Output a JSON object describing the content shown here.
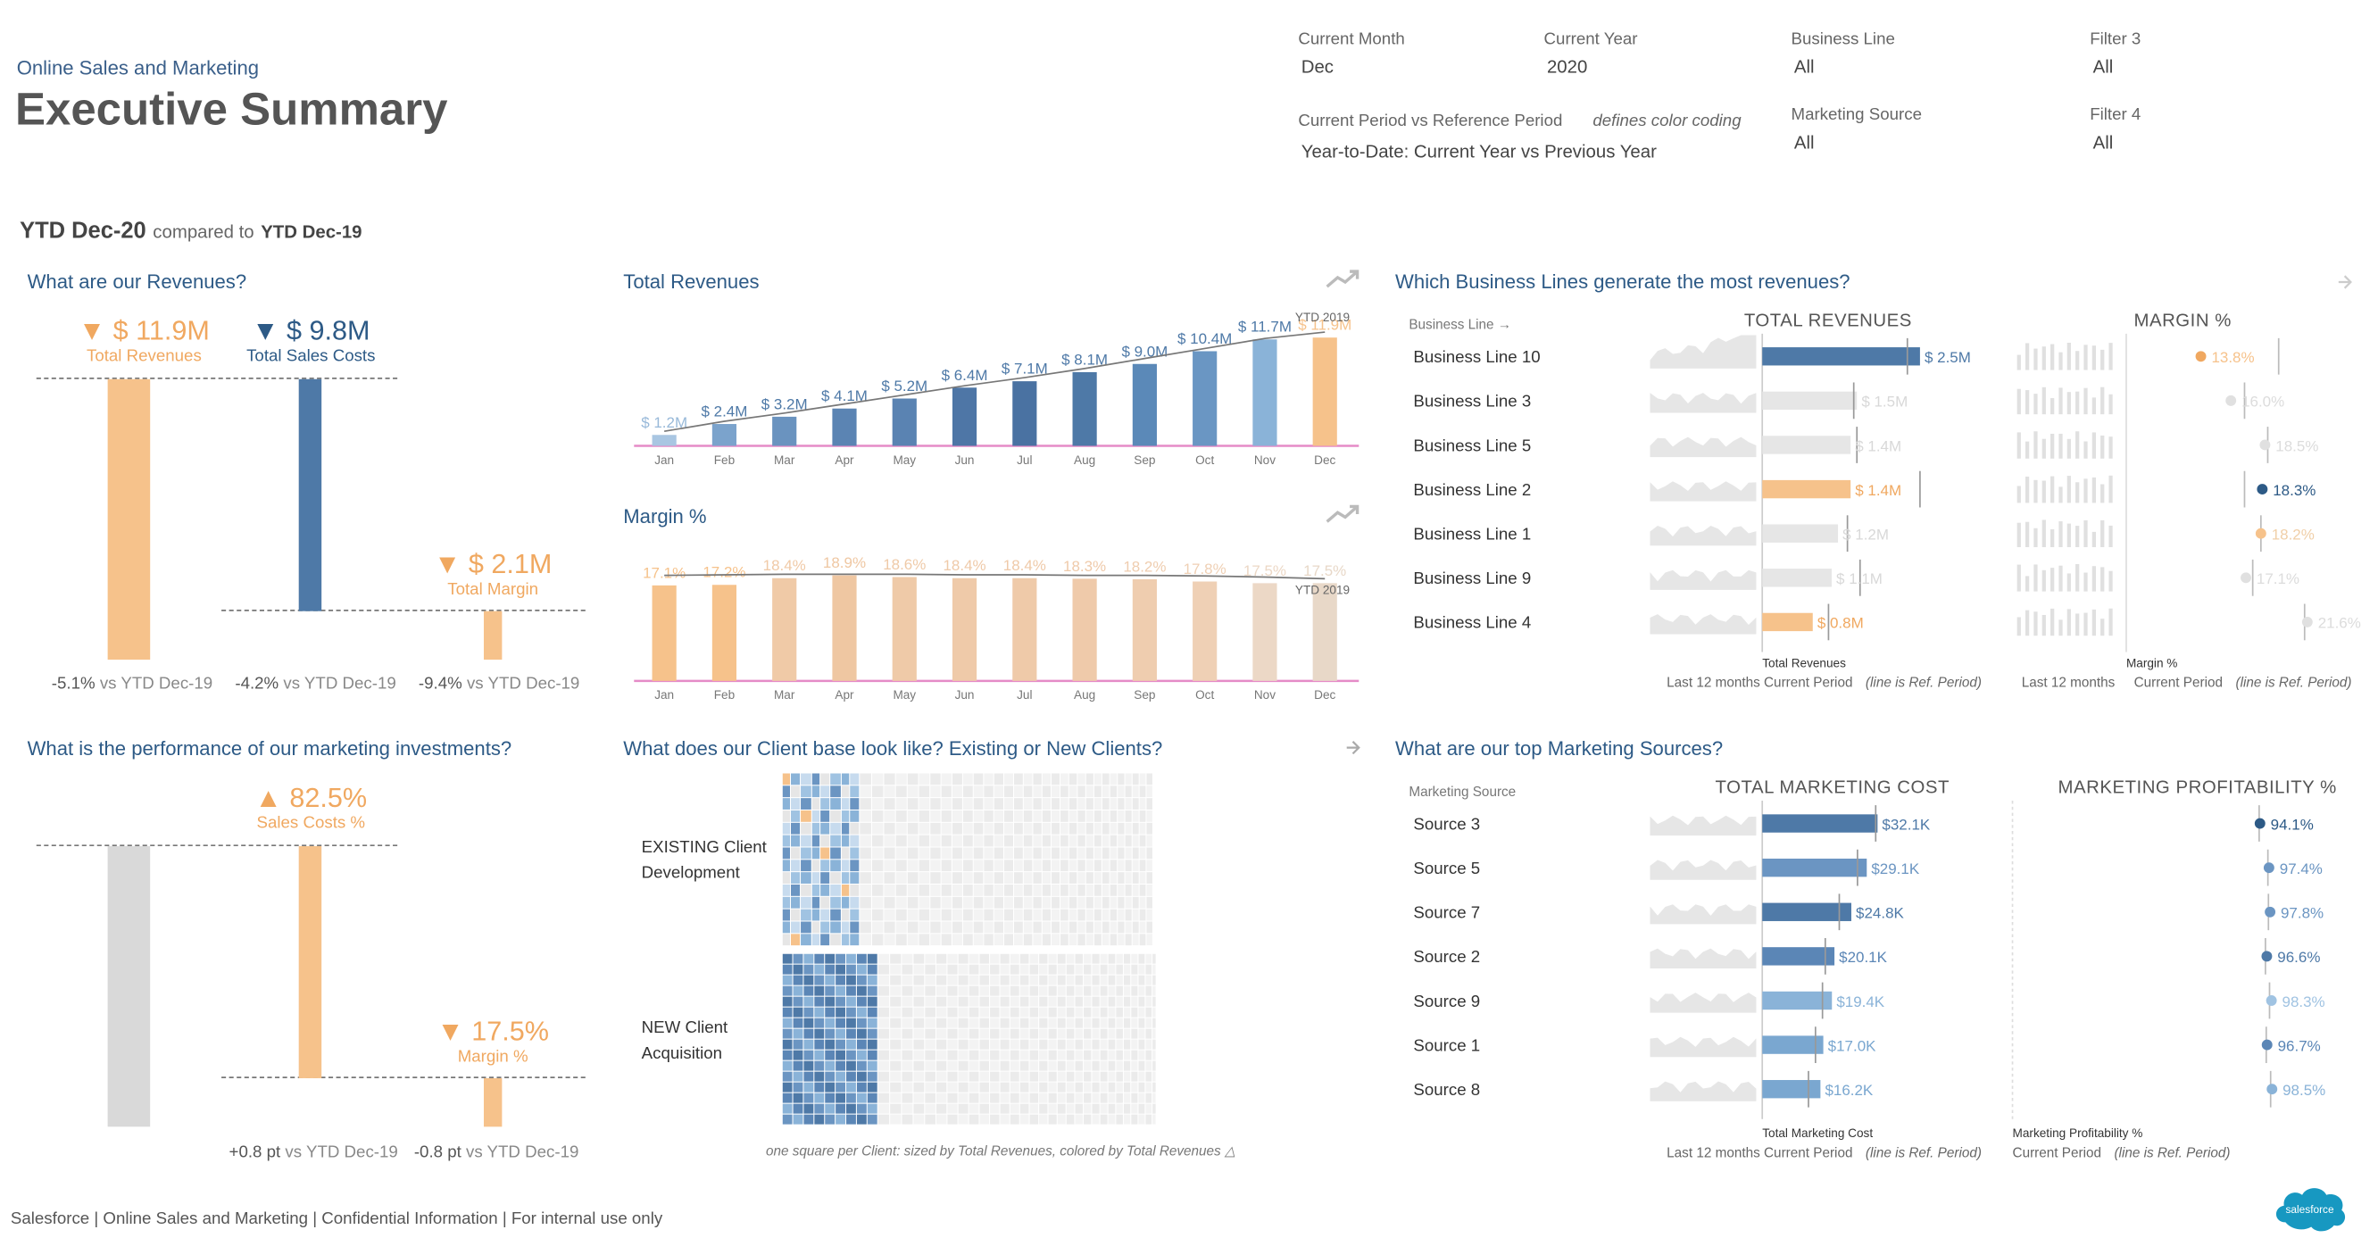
{
  "header": {
    "subtitle": "Online Sales and Marketing",
    "title": "Executive Summary",
    "period_main": "YTD Dec-20",
    "period_compared": "compared to",
    "period_ref": "YTD Dec-19"
  },
  "filters": [
    {
      "label": "Current Month",
      "value": "Dec"
    },
    {
      "label": "Current Year",
      "value": "2020"
    },
    {
      "label": "Business Line",
      "value": "All"
    },
    {
      "label": "Filter 3",
      "value": "All"
    },
    {
      "label": "Current Period vs Reference Period",
      "note": "defines color coding",
      "value": "Year-to-Date: Current Year vs Previous Year"
    },
    {
      "label": "Marketing Source",
      "value": "All"
    },
    {
      "label": "Filter 4",
      "value": "All"
    }
  ],
  "colors": {
    "orange": "#f6c28b",
    "orange_text": "#f0a860",
    "blue_dark": "#4e79a7",
    "blue_mid": "#6b95c2",
    "blue_light": "#a0c3e2",
    "gray": "#d9d9d9"
  },
  "revenues": {
    "question": "What are our Revenues?",
    "total_revenues": {
      "value": "$ 11.9M",
      "label": "Total Revenues",
      "delta": "-5.1%",
      "delta_text": "vs YTD Dec-19"
    },
    "total_sales_costs": {
      "value": "$ 9.8M",
      "label": "Total Sales Costs",
      "delta": "-4.2%",
      "delta_text": "vs YTD Dec-19"
    },
    "total_margin": {
      "value": "$ 2.1M",
      "label": "Total Margin",
      "delta": "-9.4%",
      "delta_text": "vs YTD Dec-19"
    }
  },
  "marketing_perf": {
    "question": "What is the performance of our marketing investments?",
    "sales_costs_pct": {
      "value": "82.5%",
      "label": "Sales Costs %",
      "delta": "+0.8 pt",
      "delta_text": "vs YTD Dec-19"
    },
    "margin_pct": {
      "value": "17.5%",
      "label": "Margin %",
      "delta": "-0.8 pt",
      "delta_text": "vs YTD Dec-19"
    }
  },
  "chart_data": [
    {
      "type": "bar",
      "title": "Total Revenues",
      "categories": [
        "Jan",
        "Feb",
        "Mar",
        "Apr",
        "May",
        "Jun",
        "Jul",
        "Aug",
        "Sep",
        "Oct",
        "Nov",
        "Dec"
      ],
      "values": [
        1.2,
        2.4,
        3.2,
        4.1,
        5.2,
        6.4,
        7.1,
        8.1,
        9.0,
        10.4,
        11.7,
        11.9
      ],
      "labels": [
        "$ 1.2M",
        "$ 2.4M",
        "$ 3.2M",
        "$ 4.1M",
        "$ 5.2M",
        "$ 6.4M",
        "$ 7.1M",
        "$ 8.1M",
        "$ 9.0M",
        "$ 10.4M",
        "$ 11.7M",
        "$ 11.9M"
      ],
      "reference_line_label": "YTD 2019",
      "reference_values": [
        1.6,
        2.7,
        3.6,
        4.6,
        5.6,
        6.6,
        7.5,
        8.5,
        9.6,
        10.7,
        11.8,
        12.5
      ],
      "ylim": [
        0,
        14
      ]
    },
    {
      "type": "bar",
      "title": "Margin %",
      "categories": [
        "Jan",
        "Feb",
        "Mar",
        "Apr",
        "May",
        "Jun",
        "Jul",
        "Aug",
        "Sep",
        "Oct",
        "Nov",
        "Dec"
      ],
      "values": [
        17.1,
        17.2,
        18.4,
        18.9,
        18.6,
        18.4,
        18.4,
        18.3,
        18.2,
        17.8,
        17.5,
        17.5
      ],
      "labels": [
        "17.1%",
        "17.2%",
        "18.4%",
        "18.9%",
        "18.6%",
        "18.4%",
        "18.4%",
        "18.3%",
        "18.2%",
        "17.8%",
        "17.5%",
        "17.5%"
      ],
      "reference_line_label": "YTD 2019",
      "reference_values": [
        18.9,
        19.0,
        19.1,
        19.1,
        19.1,
        19.0,
        19.0,
        18.9,
        18.9,
        18.8,
        18.6,
        18.3
      ],
      "ylim": [
        0,
        22
      ]
    },
    {
      "type": "bar",
      "title": "Which Business Lines generate the most revenues?",
      "dimension_label": "Business Line",
      "col_revenue": "TOTAL REVENUES",
      "col_margin": "MARGIN %",
      "categories": [
        "Business Line 10",
        "Business Line 3",
        "Business Line 5",
        "Business Line 2",
        "Business Line 1",
        "Business Line 9",
        "Business Line 4"
      ],
      "values": [
        2.5,
        1.5,
        1.4,
        1.4,
        1.2,
        1.1,
        0.8
      ],
      "value_labels": [
        "$ 2.5M",
        "$ 1.5M",
        "$ 1.4M",
        "$ 1.4M",
        "$ 1.2M",
        "$ 1.1M",
        "$ 0.8M"
      ],
      "reference_values": [
        2.3,
        1.45,
        1.5,
        2.5,
        1.35,
        1.55,
        1.05
      ],
      "margin_values": [
        13.8,
        16.0,
        18.5,
        18.3,
        18.2,
        17.1,
        21.6
      ],
      "margin_labels": [
        "13.8%",
        "16.0%",
        "18.5%",
        "18.3%",
        "18.2%",
        "17.1%",
        "21.6%"
      ],
      "margin_reference": [
        19.5,
        17.0,
        18.7,
        17.0,
        18.2,
        17.6,
        21.4
      ],
      "footer_rev_title": "Total Revenues",
      "footer_margin_title": "Margin %",
      "footer_last12": "Last 12 months",
      "footer_current": "Current Period",
      "footer_ref": "(line is Ref. Period)"
    },
    {
      "type": "bar",
      "title": "What are our top Marketing Sources?",
      "dimension_label": "Marketing Source",
      "col_cost": "TOTAL MARKETING COST",
      "col_profit": "MARKETING PROFITABILITY %",
      "categories": [
        "Source 3",
        "Source 5",
        "Source 7",
        "Source 2",
        "Source 9",
        "Source 1",
        "Source 8"
      ],
      "values": [
        32.1,
        29.1,
        24.8,
        20.1,
        19.4,
        17.0,
        16.2
      ],
      "value_labels": [
        "$32.1K",
        "$29.1K",
        "$24.8K",
        "$20.1K",
        "$19.4K",
        "$17.0K",
        "$16.2K"
      ],
      "reference_values": [
        40.5,
        34.0,
        27.5,
        22.5,
        21.5,
        19.0,
        16.5
      ],
      "profit_values": [
        94.1,
        97.4,
        97.8,
        96.6,
        98.3,
        96.7,
        98.5
      ],
      "profit_labels": [
        "94.1%",
        "97.4%",
        "97.8%",
        "96.6%",
        "98.3%",
        "96.7%",
        "98.5%"
      ],
      "profit_reference": [
        93.8,
        97.0,
        97.2,
        96.1,
        97.6,
        96.4,
        98.0
      ],
      "footer_cost_title": "Total Marketing Cost",
      "footer_profit_title": "Marketing Profitability %",
      "footer_last12": "Last 12 months",
      "footer_current": "Current Period",
      "footer_ref": "(line is Ref. Period)"
    }
  ],
  "clients": {
    "question": "What does our Client base look like? Existing or New Clients?",
    "existing_label": "EXISTING Client Development",
    "new_label": "NEW Client Acquisition",
    "footnote": "one square per Client: sized by Total Revenues, colored by Total Revenues △"
  },
  "footer": {
    "text": "Salesforce | Online Sales and Marketing | Confidential Information | For internal use only",
    "logo": "salesforce"
  },
  "icons": {
    "trend": "trend-up-icon",
    "arrow": "arrow-right-icon"
  }
}
